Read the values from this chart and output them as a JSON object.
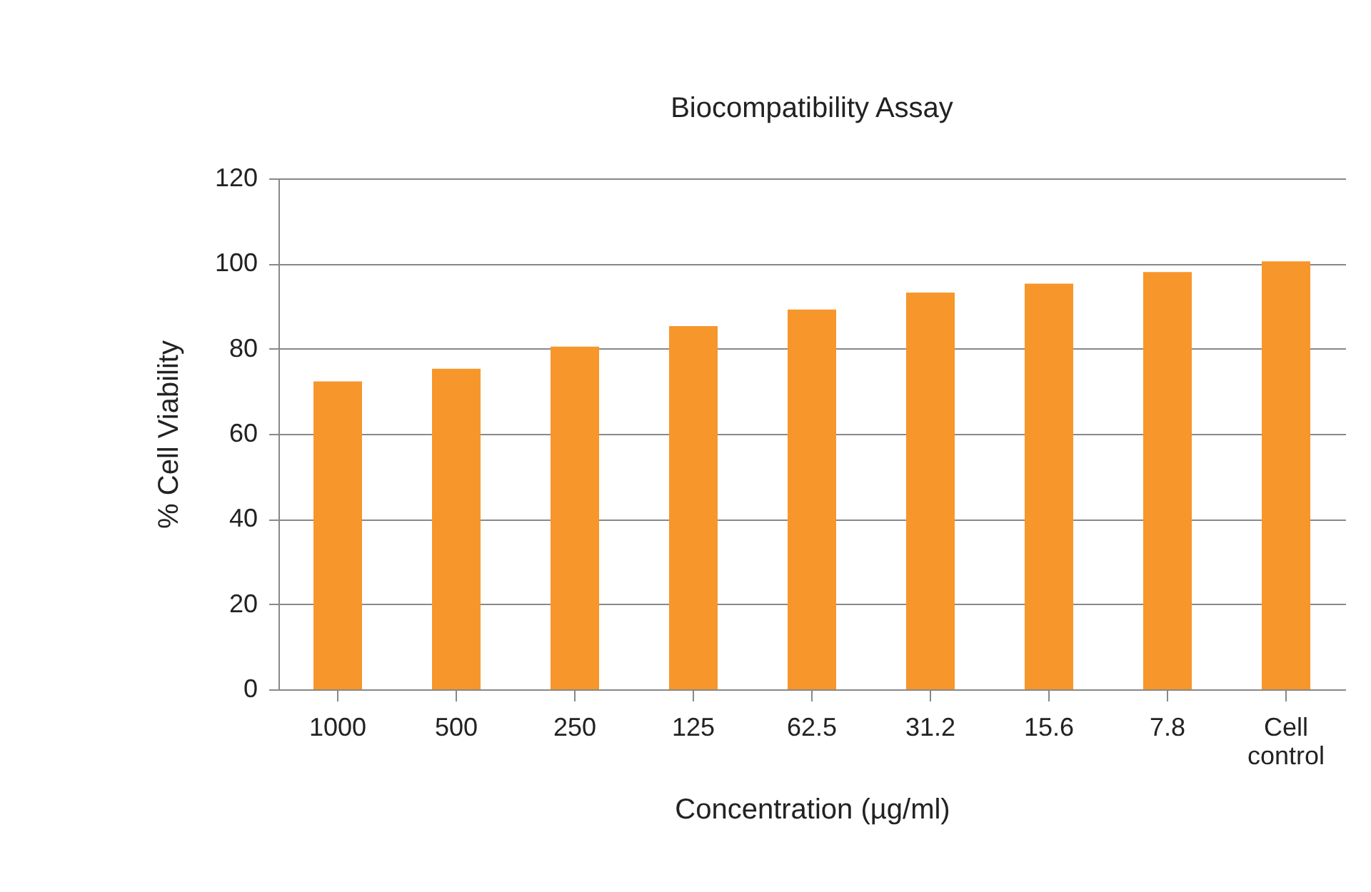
{
  "chart_data": {
    "type": "bar",
    "title": "Biocompatibility Assay",
    "xlabel": "Concentration (µg/ml)",
    "ylabel": "% Cell Viability",
    "categories": [
      "1000",
      "500",
      "250",
      "125",
      "62.5",
      "31.2",
      "15.6",
      "7.8",
      "Cell control"
    ],
    "values": [
      72.3,
      75.3,
      80.5,
      85.3,
      89.2,
      93.2,
      95.3,
      98,
      100.5
    ],
    "color": "#f7962b",
    "ylim": [
      0,
      120
    ],
    "yticks": [
      0,
      20,
      40,
      60,
      80,
      100,
      120
    ],
    "grid": "y"
  }
}
